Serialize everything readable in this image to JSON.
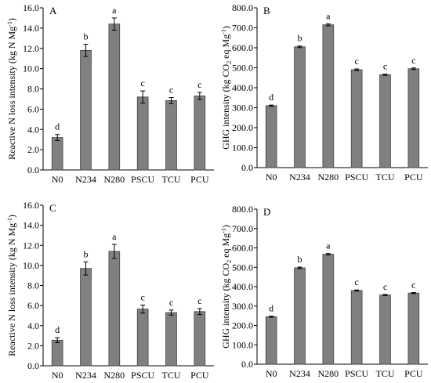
{
  "colors": {
    "bar_fill": "#808080",
    "bar_stroke": "#404040",
    "axis": "#000000",
    "text": "#000000"
  },
  "chart_data": [
    {
      "type": "bar",
      "panel_label": "A",
      "ylabel": "Reactive N loss intensity (kg N Mg",
      "ylabel_sup": "-1",
      "ylabel_tail": ")",
      "ylim": [
        0,
        16
      ],
      "yticks": [
        "0.0",
        "2.0",
        "4.0",
        "6.0",
        "8.0",
        "10.0",
        "12.0",
        "14.0",
        "16.0"
      ],
      "categories": [
        "N0",
        "N234",
        "N280",
        "PSCU",
        "TCU",
        "PCU"
      ],
      "values": [
        3.2,
        11.8,
        14.4,
        7.2,
        6.85,
        7.3
      ],
      "errors": [
        0.3,
        0.6,
        0.6,
        0.6,
        0.3,
        0.35
      ],
      "letters": [
        "d",
        "b",
        "a",
        "c",
        "c",
        "c"
      ]
    },
    {
      "type": "bar",
      "panel_label": "B",
      "ylabel": "GHG intensity (kg CO",
      "ylabel_sub": "2",
      "ylabel_mid": " eq Mg",
      "ylabel_sup": "-1",
      "ylabel_tail": ")",
      "ylim": [
        0,
        800
      ],
      "yticks": [
        "0.0",
        "100.0",
        "200.0",
        "300.0",
        "400.0",
        "500.0",
        "600.0",
        "700.0",
        "800.0"
      ],
      "categories": [
        "N0",
        "N234",
        "N280",
        "PSCU",
        "TCU",
        "PCU"
      ],
      "values": [
        310,
        605,
        715,
        490,
        465,
        495
      ],
      "errors": [
        3,
        4,
        5,
        4,
        3,
        4
      ],
      "letters": [
        "d",
        "b",
        "a",
        "c",
        "c",
        "c"
      ]
    },
    {
      "type": "bar",
      "panel_label": "C",
      "ylabel": "Reactive N loss intensity (kg N Mg",
      "ylabel_sup": "-1",
      "ylabel_tail": ")",
      "ylim": [
        0,
        16
      ],
      "yticks": [
        "0.0",
        "2.0",
        "4.0",
        "6.0",
        "8.0",
        "10.0",
        "12.0",
        "14.0",
        "16.0"
      ],
      "categories": [
        "N0",
        "N234",
        "N280",
        "PSCU",
        "TCU",
        "PCU"
      ],
      "values": [
        2.55,
        9.7,
        11.4,
        5.65,
        5.3,
        5.4
      ],
      "errors": [
        0.25,
        0.65,
        0.7,
        0.4,
        0.25,
        0.3
      ],
      "letters": [
        "d",
        "b",
        "a",
        "c",
        "c",
        "c"
      ]
    },
    {
      "type": "bar",
      "panel_label": "D",
      "ylabel": "GHG intensity (kg CO",
      "ylabel_sub": "2",
      "ylabel_mid": " eq Mg",
      "ylabel_sup": "-1",
      "ylabel_tail": ")",
      "ylim": [
        0,
        800
      ],
      "yticks": [
        "0.0",
        "100.0",
        "200.0",
        "300.0",
        "400.0",
        "500.0",
        "600.0",
        "700.0",
        "800.0"
      ],
      "categories": [
        "N0",
        "N234",
        "N280",
        "PSCU",
        "TCU",
        "PCU"
      ],
      "values": [
        245,
        497,
        567,
        380,
        357,
        367
      ],
      "errors": [
        3,
        4,
        4,
        3,
        3,
        3
      ],
      "letters": [
        "d",
        "b",
        "a",
        "c",
        "c",
        "c"
      ]
    }
  ]
}
